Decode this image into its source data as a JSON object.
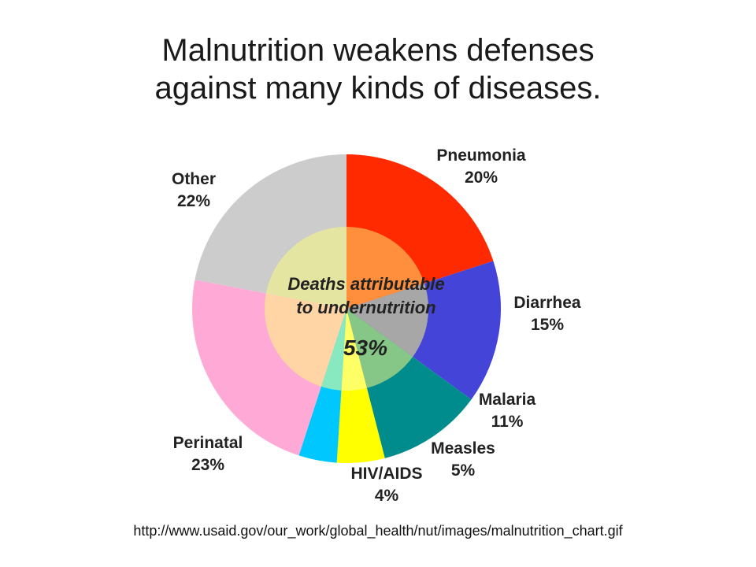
{
  "title": {
    "line1": "Malnutrition weakens defenses",
    "line2": "against many kinds of diseases."
  },
  "source_url": "http://www.usaid.gov/our_work/global_health/nut/images/malnutrition_chart.gif",
  "chart_data": {
    "type": "pie",
    "title": "Malnutrition weakens defenses against many kinds of diseases.",
    "categories": [
      "Pneumonia",
      "Diarrhea",
      "Malaria",
      "Measles",
      "HIV/AIDS",
      "Perinatal",
      "Other"
    ],
    "values": [
      20,
      15,
      11,
      5,
      4,
      23,
      22
    ],
    "value_labels": [
      "20%",
      "15%",
      "11%",
      "5%",
      "4%",
      "23%",
      "22%"
    ],
    "outer_colors": [
      "#ff2a00",
      "#4444d8",
      "#008c8c",
      "#ffff00",
      "#00c8ff",
      "#ffaad6",
      "#cccccc"
    ],
    "inner_colors": [
      "#ff8f3c",
      "#a7a7a7",
      "#86c686",
      "#ffff66",
      "#88e8c0",
      "#ffd5a6",
      "#e5e5a2"
    ],
    "inner_ring": {
      "label_line1": "Deaths attributable",
      "label_line2": "to undernutrition",
      "value_label": "53%",
      "value": 53
    },
    "legend": "labels-outside"
  }
}
